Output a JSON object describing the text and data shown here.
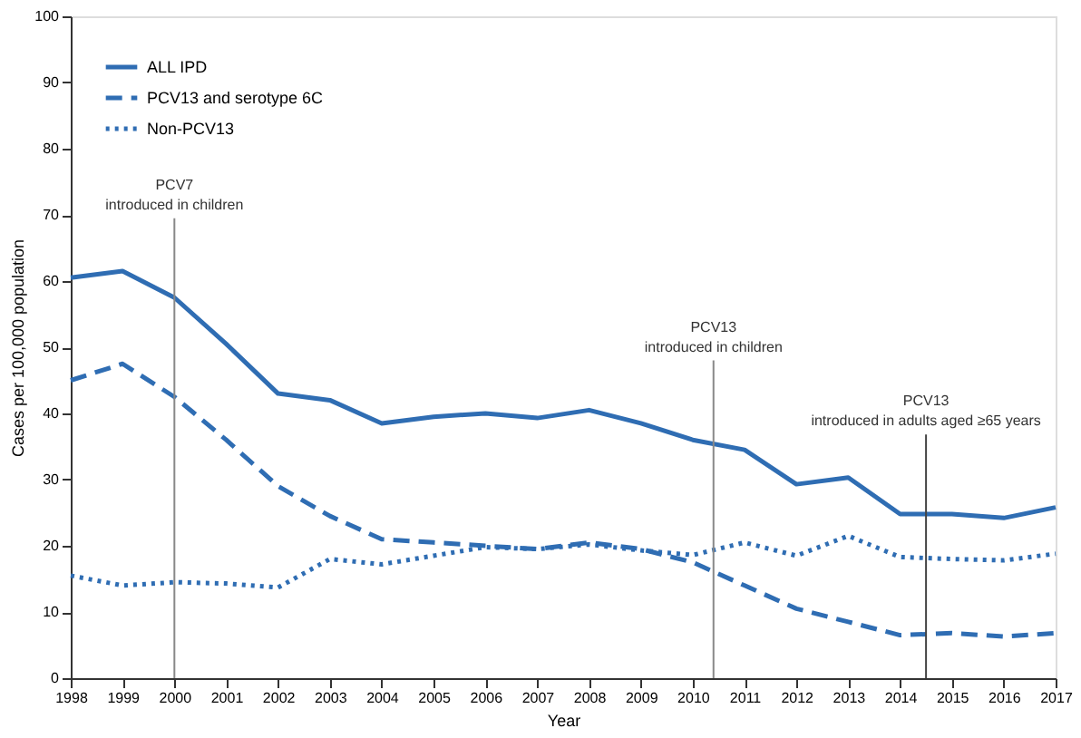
{
  "chart_data": {
    "type": "line",
    "xlabel": "Year",
    "ylabel": "Cases per 100,000 population",
    "x": [
      1998,
      1999,
      2000,
      2001,
      2002,
      2003,
      2004,
      2005,
      2006,
      2007,
      2008,
      2009,
      2010,
      2011,
      2012,
      2013,
      2014,
      2015,
      2016,
      2017
    ],
    "series": [
      {
        "name": "ALL IPD",
        "color": "#2f6db3",
        "line_style": "solid",
        "values": [
          60.5,
          61.5,
          57.5,
          50.5,
          43,
          42,
          38.5,
          39.5,
          40,
          39.3,
          40.5,
          38.5,
          36,
          34.5,
          29.3,
          30.3,
          24.8,
          24.8,
          24.2,
          25.8
        ]
      },
      {
        "name": "PCV13 and serotype 6C",
        "color": "#2f6db3",
        "line_style": "dashed",
        "values": [
          45,
          47.5,
          42.5,
          36,
          29,
          24.5,
          21,
          20.5,
          20,
          19.5,
          20.5,
          19.5,
          17.5,
          14,
          10.5,
          8.5,
          6.5,
          6.8,
          6.3,
          6.8
        ]
      },
      {
        "name": "Non-PCV13",
        "color": "#2f6db3",
        "line_style": "dotted",
        "values": [
          15.5,
          14,
          14.5,
          14.3,
          13.7,
          18,
          17.2,
          18.5,
          19.8,
          19.5,
          20.2,
          19.3,
          18.6,
          20.5,
          18.5,
          21.5,
          18.3,
          18,
          17.8,
          18.8
        ]
      }
    ],
    "xlim": [
      1998,
      2017
    ],
    "xticks": [
      1998,
      1999,
      2000,
      2001,
      2002,
      2003,
      2004,
      2005,
      2006,
      2007,
      2008,
      2009,
      2010,
      2011,
      2012,
      2013,
      2014,
      2015,
      2016,
      2017
    ],
    "ylim": [
      0,
      100
    ],
    "yticks": [
      0,
      10,
      20,
      30,
      40,
      50,
      60,
      70,
      80,
      90,
      100
    ],
    "ref_lines": [
      {
        "axis": "x",
        "value": 2000,
        "label": "PCV7\nintroduced in children",
        "color": "#888888"
      },
      {
        "axis": "x",
        "value": 2010.4,
        "label": "PCV13\nintroduced in children",
        "color": "#888888"
      },
      {
        "axis": "x",
        "value": 2014.5,
        "label": "PCV13\nintroduced in adults aged ≥65 years",
        "color": "#444444"
      }
    ],
    "grid": false,
    "legend": "top left",
    "marker": "none"
  }
}
